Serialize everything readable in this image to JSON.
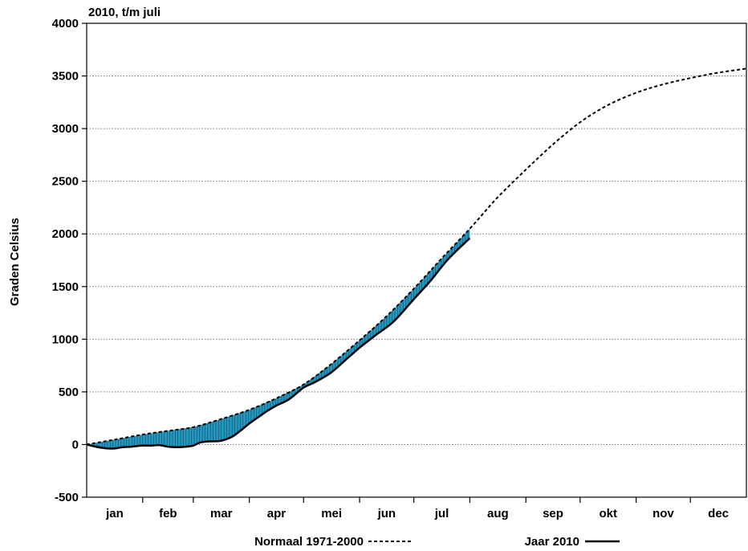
{
  "chart_data": {
    "type": "line",
    "title": "2010, t/m juli",
    "ylabel": "Graden Celsius",
    "xlabel": "",
    "ylim": [
      -500,
      4000
    ],
    "yticks": [
      -500,
      0,
      500,
      1000,
      1500,
      2000,
      2500,
      3000,
      3500,
      4000
    ],
    "grid": true,
    "months": [
      "jan",
      "feb",
      "mar",
      "apr",
      "mei",
      "jun",
      "jul",
      "aug",
      "sep",
      "okt",
      "nov",
      "dec"
    ],
    "month_lengths": [
      31,
      28,
      31,
      30,
      31,
      30,
      31,
      31,
      30,
      31,
      30,
      31
    ],
    "fill_between_series": true,
    "fill_color": "#2596be",
    "series": [
      {
        "name": "Normaal 1971-2000",
        "style": "dashed",
        "day": [
          0,
          15,
          31,
          45,
          59,
          74,
          90,
          105,
          120,
          135,
          151,
          166,
          181,
          196,
          212,
          227,
          243,
          258,
          273,
          288,
          304,
          319,
          334,
          349,
          365
        ],
        "values": [
          0,
          45,
          95,
          130,
          165,
          240,
          330,
          440,
          570,
          760,
          990,
          1220,
          1480,
          1760,
          2050,
          2340,
          2610,
          2850,
          3060,
          3220,
          3340,
          3420,
          3480,
          3530,
          3570
        ]
      },
      {
        "name": "Jaar 2010",
        "style": "solid",
        "day": [
          0,
          5,
          10,
          15,
          20,
          25,
          31,
          36,
          40,
          45,
          50,
          55,
          59,
          63,
          68,
          74,
          80,
          85,
          90,
          95,
          100,
          105,
          112,
          120,
          126,
          135,
          145,
          151,
          160,
          170,
          181,
          190,
          200,
          212
        ],
        "values": [
          0,
          -20,
          -35,
          -38,
          -25,
          -20,
          -10,
          -10,
          -5,
          -20,
          -25,
          -20,
          -10,
          20,
          30,
          35,
          70,
          130,
          200,
          260,
          320,
          370,
          430,
          540,
          590,
          680,
          830,
          920,
          1040,
          1170,
          1380,
          1550,
          1760,
          1960
        ]
      }
    ]
  }
}
